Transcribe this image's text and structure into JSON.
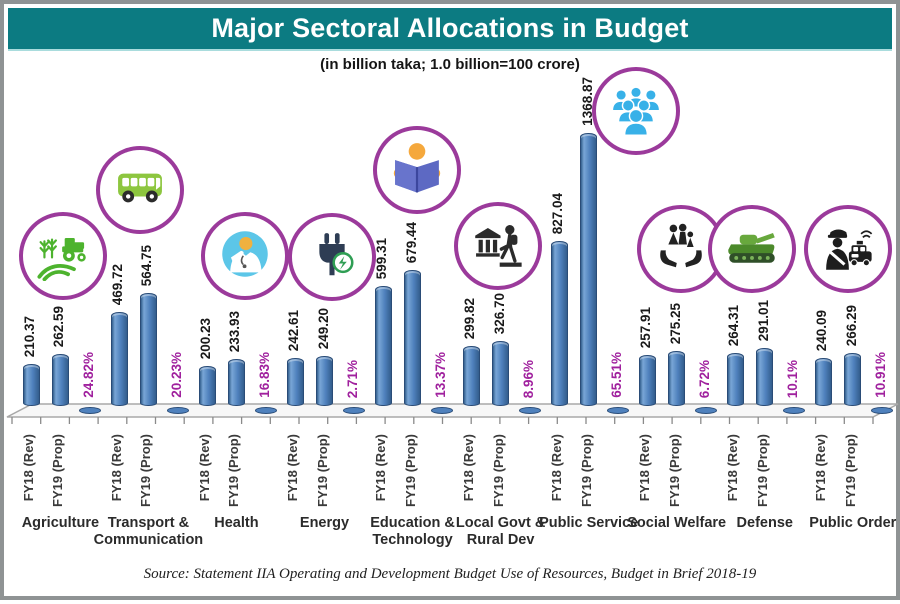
{
  "title": "Major Sectoral Allocations in Budget",
  "subtitle": "(in billion taka; 1.0 billion=100 crore)",
  "source_note": "Source: Statement IIA Operating and Development Budget Use of Resources, Budget in Brief 2018-19",
  "colors": {
    "banner_bg": "#0c7b82",
    "title_text": "#ffffff",
    "bar_fill": "#4f81bd",
    "bar_edge": "#2a4c77",
    "growth_text": "#a0219e",
    "value_text": "#1a1a1a",
    "icon_circle_border": "#9b3a9b"
  },
  "chart_data": {
    "type": "bar",
    "unit": "billion taka",
    "categories": [
      "Agriculture",
      "Transport & Communication",
      "Health",
      "Energy",
      "Education & Technology",
      "Local Govt & Rural Dev",
      "Public Service",
      "Social Welfare",
      "Defense",
      "Public Order"
    ],
    "series": [
      {
        "name": "FY18 (Rev)",
        "values": [
          210.37,
          469.72,
          200.23,
          242.61,
          599.31,
          299.82,
          827.04,
          257.91,
          264.31,
          240.09
        ]
      },
      {
        "name": "FY19 (Prop)",
        "values": [
          262.59,
          564.75,
          233.93,
          249.2,
          679.44,
          326.7,
          1368.87,
          275.25,
          291.01,
          266.29
        ]
      }
    ],
    "value_labels_fy18": [
      "210.37",
      "469.72",
      "200.23",
      "242.61",
      "599.31",
      "299.82",
      "827.04",
      "257.91",
      "264.31",
      "240.09"
    ],
    "value_labels_fy19": [
      "262.59",
      "564.75",
      "233.93",
      "249.20",
      "679.44",
      "326.70",
      "1368.87",
      "275.25",
      "291.01",
      "266.29"
    ],
    "growth_labels": [
      "24.82%",
      "20.23%",
      "16.83%",
      "2.71%",
      "13.37%",
      "8.96%",
      "65.51%",
      "6.72%",
      "10.1%",
      "10.91%"
    ],
    "icons": [
      "agriculture-icon",
      "bus-icon",
      "doctor-icon",
      "power-plug-icon",
      "education-icon",
      "local-government-icon",
      "public-service-crowd-icon",
      "social-welfare-icon",
      "tank-icon",
      "police-icon"
    ],
    "ylim": [
      0,
      1400
    ],
    "grid": false,
    "legend": "none"
  }
}
